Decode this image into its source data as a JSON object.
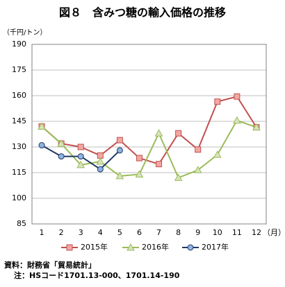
{
  "chart_data": {
    "type": "line",
    "title": "図８　含みつ糖の輸入価格の推移",
    "y_label": "（千円/トン）",
    "x_label": "（月）",
    "categories": [
      "1",
      "2",
      "3",
      "4",
      "5",
      "6",
      "7",
      "8",
      "9",
      "10",
      "11",
      "12"
    ],
    "series": [
      {
        "name": "2015年",
        "color": "#c0504d",
        "marker_fill": "#f2a7a2",
        "marker": "square",
        "values": [
          142,
          132,
          130,
          125,
          134,
          123.5,
          120,
          138,
          128.5,
          156.5,
          159.5,
          141.5
        ]
      },
      {
        "name": "2016年",
        "color": "#9bbb59",
        "marker_fill": "#d7e4bd",
        "marker": "triangle",
        "values": [
          142,
          132,
          119.5,
          121.5,
          113,
          114,
          138,
          112,
          116.5,
          125.5,
          145.5,
          141.5
        ]
      },
      {
        "name": "2017年",
        "color": "#1f3864",
        "marker_fill": "#8db3e2",
        "marker": "circle",
        "values": [
          131,
          124.5,
          124.5,
          117,
          128,
          null,
          null,
          null,
          null,
          null,
          null,
          null
        ]
      }
    ],
    "ylim": [
      85,
      190
    ],
    "yticks": [
      85,
      100,
      115,
      130,
      145,
      160,
      175,
      190
    ],
    "grid": true,
    "legend": "bottom",
    "notes": [
      "資料：財務省「貿易統計」",
      "注：HSコード1701.13-000、1701.14-190"
    ]
  }
}
